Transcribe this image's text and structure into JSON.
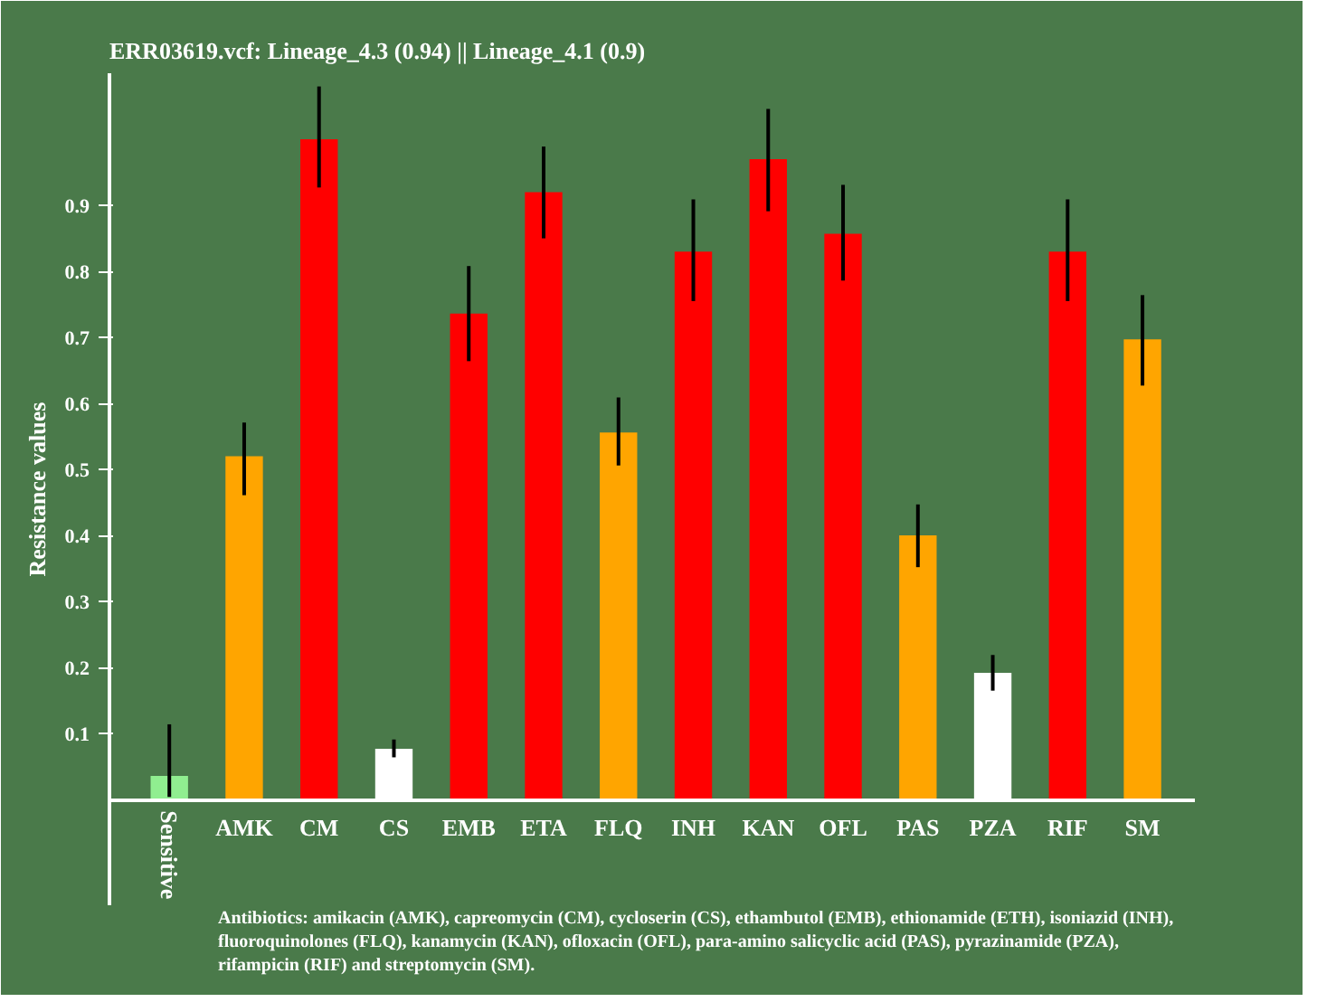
{
  "chart_data": {
    "type": "bar",
    "title": "ERR03619.vcf: Lineage_4.3 (0.94) || Lineage_4.1 (0.9)",
    "ylabel": "Resistance values",
    "categories": [
      "Sensitive",
      "AMK",
      "CM",
      "CS",
      "EMB",
      "ETA",
      "FLQ",
      "INH",
      "KAN",
      "OFL",
      "PAS",
      "PZA",
      "RIF",
      "SM"
    ],
    "values": [
      0.036,
      0.52,
      1.0,
      0.077,
      0.736,
      0.92,
      0.556,
      0.83,
      0.97,
      0.857,
      0.4,
      0.192,
      0.83,
      0.697
    ],
    "colors": [
      "#90ee90",
      "#ffa500",
      "#ff0000",
      "#ffffff",
      "#ff0000",
      "#ff0000",
      "#ffa500",
      "#ff0000",
      "#ff0000",
      "#ff0000",
      "#ffa500",
      "#ffffff",
      "#ff0000",
      "#ffa500"
    ],
    "errors": [
      [
        0.004,
        0.114
      ],
      [
        0.461,
        0.571
      ],
      [
        0.927,
        1.08
      ],
      [
        0.064,
        0.091
      ],
      [
        0.664,
        0.808
      ],
      [
        0.85,
        0.989
      ],
      [
        0.506,
        0.609
      ],
      [
        0.755,
        0.909
      ],
      [
        0.891,
        1.046
      ],
      [
        0.786,
        0.931
      ],
      [
        0.352,
        0.447
      ],
      [
        0.165,
        0.219
      ],
      [
        0.755,
        0.909
      ],
      [
        0.627,
        0.764
      ]
    ],
    "ylim": [
      -0.16,
      1.1
    ],
    "yticks": [
      0.1,
      0.2,
      0.3,
      0.4,
      0.5,
      0.6,
      0.7,
      0.8,
      0.9
    ],
    "grid": false,
    "annotations": [
      "Antibiotics: amikacin (AMK), capreomycin (CM), cycloserin (CS), ethambutol (EMB), ethionamide (ETH), isoniazid (INH), fluoroquinolones (FLQ), kanamycin (KAN), ofloxacin (OFL), para-amino salicyclic acid (PAS), pyrazinamide (PZA), rifampicin (RIF) and streptomycin (SM)."
    ]
  }
}
